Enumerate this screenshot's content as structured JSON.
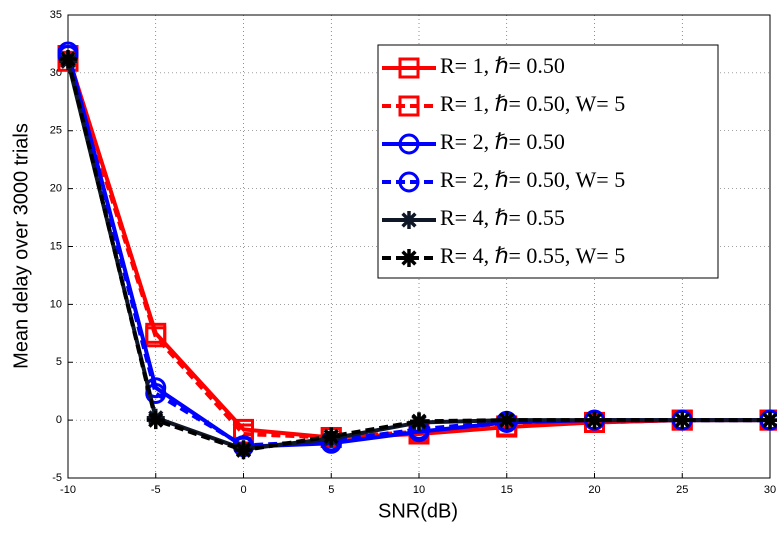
{
  "chart_data": {
    "type": "line",
    "x_label": "SNR(dB)",
    "y_label": "Mean delay over 3000 trials",
    "x": [
      -10,
      -5,
      0,
      5,
      10,
      15,
      20,
      25,
      30
    ],
    "xlim": [
      -10,
      30
    ],
    "xticks": [
      -10,
      -5,
      0,
      5,
      10,
      15,
      20,
      25,
      30
    ],
    "ylim": [
      -5,
      35
    ],
    "yticks": [
      -5,
      0,
      5,
      10,
      15,
      20,
      25,
      30,
      35
    ],
    "grid": true,
    "legend": "upper right",
    "series": [
      {
        "name": "R= 1, ℏ= 0.50",
        "color": "#ff0000",
        "marker": "square",
        "dashed": false,
        "values": [
          31.5,
          7.5,
          -0.8,
          -1.5,
          -1.2,
          -0.6,
          -0.2,
          0,
          0
        ]
      },
      {
        "name": "R= 1, ℏ= 0.50, W= 5",
        "color": "#ff0000",
        "marker": "square",
        "dashed": true,
        "values": [
          31,
          7.2,
          -1.2,
          -1.5,
          -1.0,
          -0.5,
          -0.2,
          0,
          0
        ]
      },
      {
        "name": "R= 2, ℏ= 0.50",
        "color": "#0000ff",
        "marker": "circle",
        "dashed": false,
        "values": [
          31.8,
          2.8,
          -2.3,
          -2.0,
          -1.0,
          -0.2,
          0,
          0,
          0
        ]
      },
      {
        "name": "R= 2, ℏ= 0.50, W= 5",
        "color": "#0000ff",
        "marker": "circle",
        "dashed": true,
        "values": [
          31.5,
          2.3,
          -2.2,
          -1.8,
          -0.8,
          -0.1,
          0,
          0,
          0
        ]
      },
      {
        "name": "R= 4, ℏ= 0.55",
        "color": "#101828",
        "marker": "asterisk",
        "dashed": false,
        "values": [
          31.0,
          0.2,
          -2.5,
          -1.6,
          -0.2,
          0,
          0,
          0,
          0
        ]
      },
      {
        "name": "R= 4, ℏ= 0.55, W= 5",
        "color": "#000000",
        "marker": "asterisk",
        "dashed": true,
        "values": [
          31.2,
          0.0,
          -2.6,
          -1.4,
          -0.1,
          0,
          0,
          0,
          0
        ]
      }
    ]
  }
}
